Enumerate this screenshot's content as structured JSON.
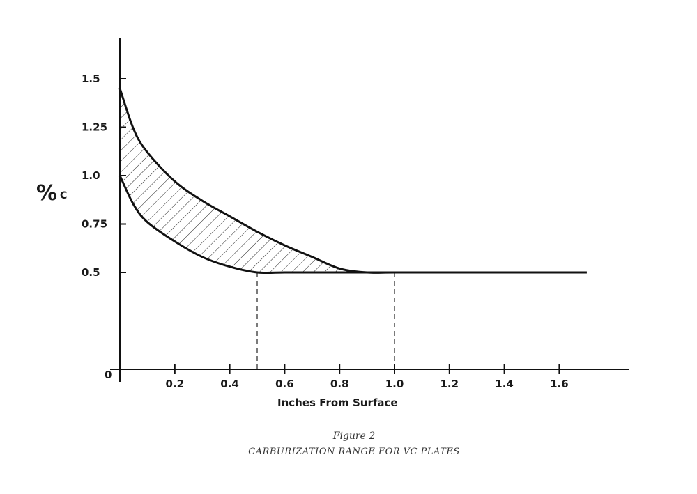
{
  "chart_data": {
    "type": "area",
    "xlabel": "Inches From Surface",
    "ylabel": "%C",
    "ylabel_main": "%",
    "ylabel_sub": "C",
    "origin_label": "0",
    "xlim": [
      0,
      1.7
    ],
    "ylim": [
      0,
      1.6
    ],
    "x_ticks": [
      {
        "value": 0.2,
        "label": "0.2"
      },
      {
        "value": 0.4,
        "label": "0.4"
      },
      {
        "value": 0.6,
        "label": "0.6"
      },
      {
        "value": 0.8,
        "label": "0.8"
      },
      {
        "value": 1.0,
        "label": "1.0"
      },
      {
        "value": 1.2,
        "label": "1.2"
      },
      {
        "value": 1.4,
        "label": "1.4"
      },
      {
        "value": 1.6,
        "label": "1.6"
      }
    ],
    "y_ticks": [
      {
        "value": 0.5,
        "label": "0.5"
      },
      {
        "value": 0.75,
        "label": "0.75"
      },
      {
        "value": 1.0,
        "label": "1.0"
      },
      {
        "value": 1.25,
        "label": "1.25"
      },
      {
        "value": 1.5,
        "label": "1.5"
      }
    ],
    "series": [
      {
        "x": [
          0,
          0.05,
          0.1,
          0.2,
          0.3,
          0.4,
          0.5,
          0.6,
          0.7,
          0.8,
          0.9,
          1.0,
          1.2,
          1.4,
          1.6,
          1.7
        ],
        "values": [
          1.45,
          1.24,
          1.12,
          0.97,
          0.87,
          0.79,
          0.71,
          0.64,
          0.58,
          0.52,
          0.5,
          0.5,
          0.5,
          0.5,
          0.5,
          0.5
        ]
      },
      {
        "x": [
          0,
          0.05,
          0.1,
          0.2,
          0.3,
          0.4,
          0.5,
          0.6,
          0.7,
          0.8,
          0.9,
          1.0,
          1.2,
          1.4,
          1.6,
          1.7
        ],
        "values": [
          1.0,
          0.85,
          0.76,
          0.66,
          0.58,
          0.53,
          0.5,
          0.5,
          0.5,
          0.5,
          0.5,
          0.5,
          0.5,
          0.5,
          0.5,
          0.5
        ]
      }
    ],
    "shaded_region": "between series",
    "reference_lines_x": [
      0.5,
      1.0
    ],
    "grid": false,
    "legend": "none"
  },
  "caption": {
    "figure_number": "Figure 2",
    "title": "CARBURIZATION RANGE FOR VC PLATES"
  }
}
